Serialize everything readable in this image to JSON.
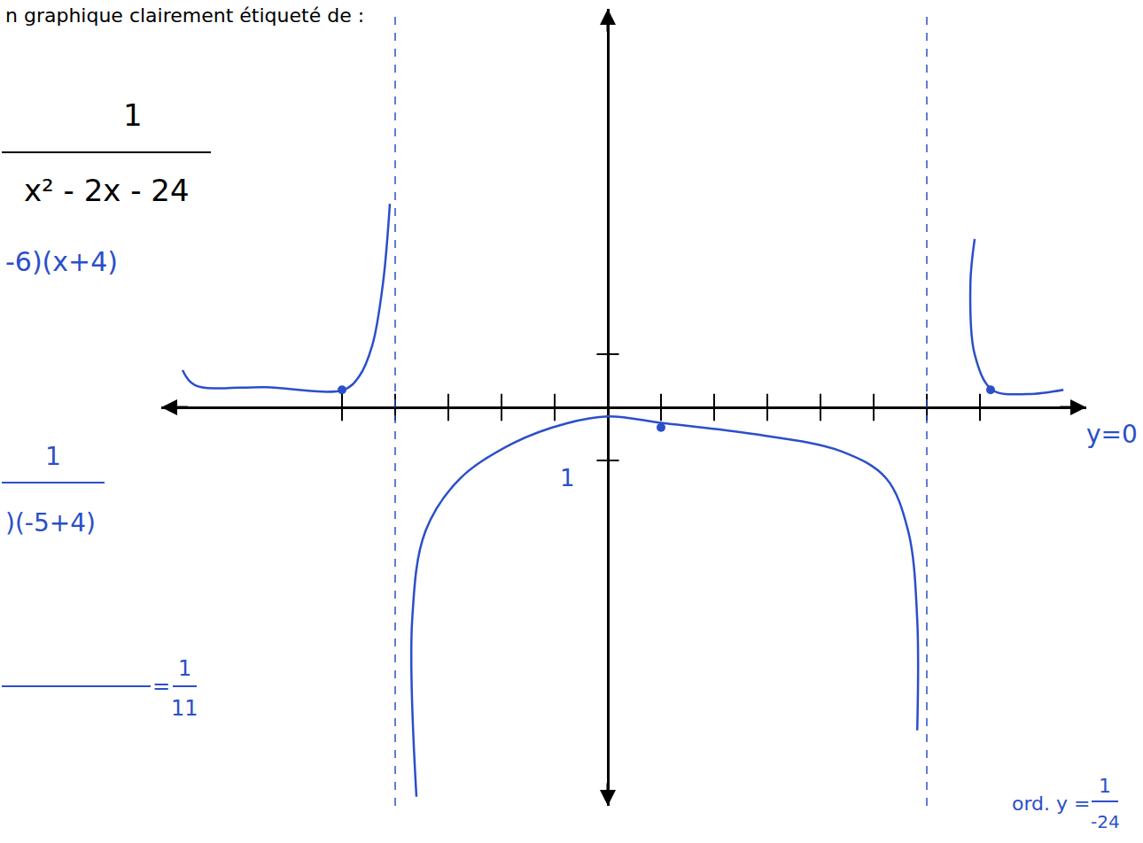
{
  "chart_data": {
    "type": "line",
    "color": "#2b4fc9",
    "line_style": "solid",
    "xlim": [
      -8.4,
      9.0
    ],
    "ylim": [
      -7.5,
      7.5
    ],
    "xticks": [
      -5,
      -4,
      -3,
      -2,
      -1,
      1,
      2,
      3,
      4,
      5,
      6,
      7
    ],
    "yticks": [
      -1,
      1
    ],
    "tick_labels": false,
    "grid": false,
    "vertical_asymptotes": [
      -4,
      6
    ],
    "series": [
      {
        "type": "line",
        "x": [
          -8.0,
          -7.77,
          -6.43,
          -4.97,
          -4.68,
          -4.43,
          -4.23,
          -4.1
        ],
        "values": [
          0.7,
          0.42,
          0.38,
          0.33,
          0.58,
          1.17,
          2.33,
          3.83
        ]
      },
      {
        "type": "line",
        "x": [
          -3.6,
          -3.68,
          -3.43,
          -2.77,
          -1.77,
          -0.77,
          0,
          1.07,
          2.73,
          4.4,
          5.23,
          5.65,
          5.82,
          5.82
        ],
        "values": [
          -7.33,
          -4.0,
          -2.33,
          -1.33,
          -0.67,
          -0.3,
          -0.17,
          -0.3,
          -0.5,
          -0.83,
          -1.33,
          -2.33,
          -4.0,
          -6.08
        ]
      },
      {
        "type": "line",
        "x": [
          6.9,
          6.82,
          6.9,
          7.23,
          7.9,
          8.57
        ],
        "values": [
          3.17,
          2.33,
          1.0,
          0.33,
          0.25,
          0.33
        ]
      },
      {
        "type": "scatter",
        "marker": "circle",
        "x": [
          -5,
          1,
          7.2
        ],
        "values": [
          0.33,
          -0.38,
          0.33
        ]
      }
    ],
    "annotations": [
      "n graphique clairement étiqueté de :",
      "1",
      "x² - 2x - 24",
      "-6)(x+4)",
      "1",
      ")(-5+4)",
      "=",
      "1",
      "11",
      "ord. y =",
      "1",
      "-24",
      "y=0",
      "1"
    ]
  }
}
